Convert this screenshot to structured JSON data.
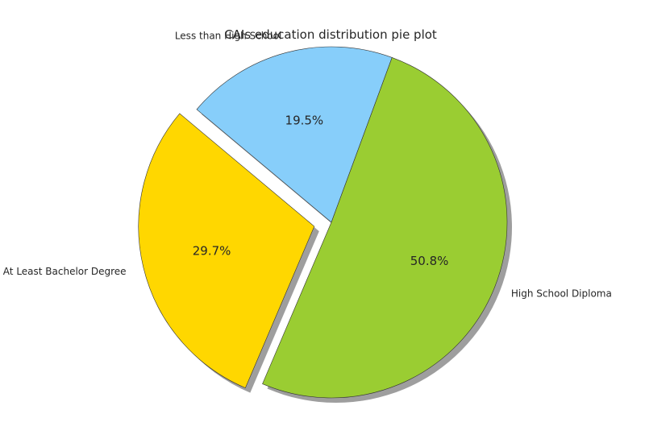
{
  "chart_data": {
    "type": "pie",
    "title": "CAIs education distribution pie plot",
    "slices": [
      {
        "label": "Less than High School",
        "value": 19.5,
        "pct_label": "19.5%",
        "color": "#87CEFA",
        "explode": 0
      },
      {
        "label": "High School Diploma",
        "value": 50.8,
        "pct_label": "50.8%",
        "color": "#9ACD32",
        "explode": 0
      },
      {
        "label": "At Least Bachelor Degree",
        "value": 29.7,
        "pct_label": "29.7%",
        "color": "#FFD700",
        "explode": 0.1
      }
    ],
    "start_angle": 140,
    "counterclock": false,
    "shadow": true,
    "edge_color": "#333333"
  }
}
